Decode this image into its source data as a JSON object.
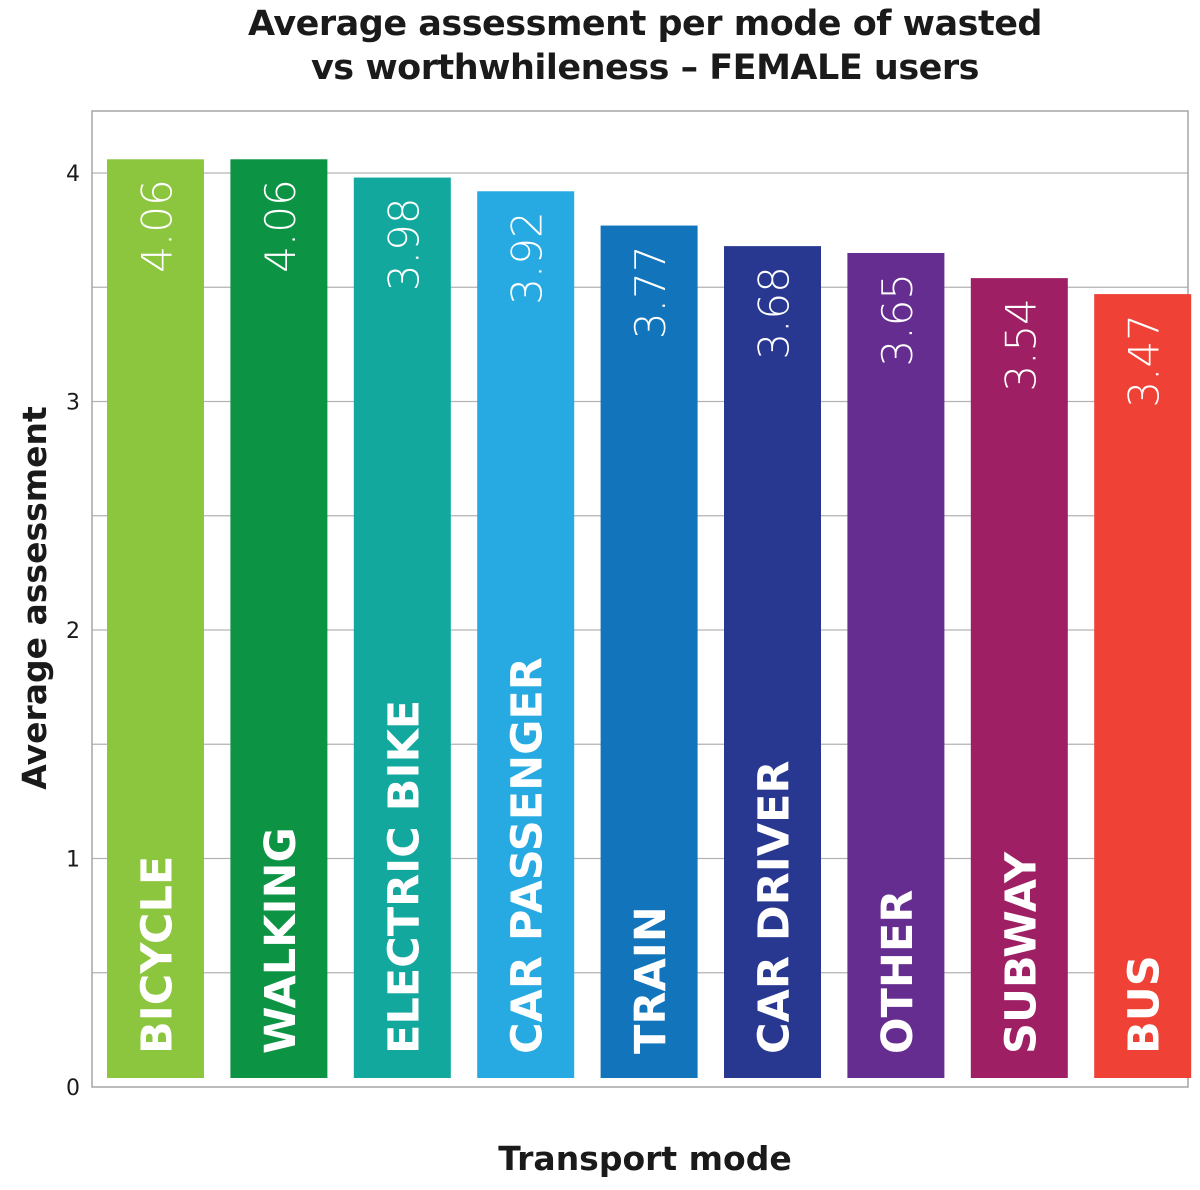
{
  "chart_data": {
    "type": "bar",
    "title": "Average assessment per mode of wasted vs worthwhileness – FEMALE users",
    "title_lines": [
      "Average assessment per mode of wasted",
      "vs worthwhileness – FEMALE users"
    ],
    "xlabel": "Transport mode",
    "ylabel": "Average assessment",
    "ylim": [
      0,
      4.27
    ],
    "yticks": [
      0,
      1,
      2,
      3,
      4
    ],
    "minor_gridlines": [
      0.5,
      1.5,
      2.5,
      3.5
    ],
    "grid": true,
    "legend": "none",
    "categories": [
      "BICYCLE",
      "WALKING",
      "ELECTRIC BIKE",
      "CAR PASSENGER",
      "TRAIN",
      "CAR DRIVER",
      "OTHER",
      "SUBWAY",
      "BUS"
    ],
    "values": [
      4.06,
      4.06,
      3.98,
      3.92,
      3.77,
      3.68,
      3.65,
      3.54,
      3.47
    ],
    "value_labels": [
      "4.06",
      "4.06",
      "3.98",
      "3.92",
      "3.77",
      "3.68",
      "3.65",
      "3.54",
      "3.47"
    ],
    "colors": [
      "#8cc63f",
      "#0c9444",
      "#13a89e",
      "#27aae1",
      "#1275bc",
      "#283891",
      "#662d91",
      "#9e1f63",
      "#ef4136"
    ]
  }
}
